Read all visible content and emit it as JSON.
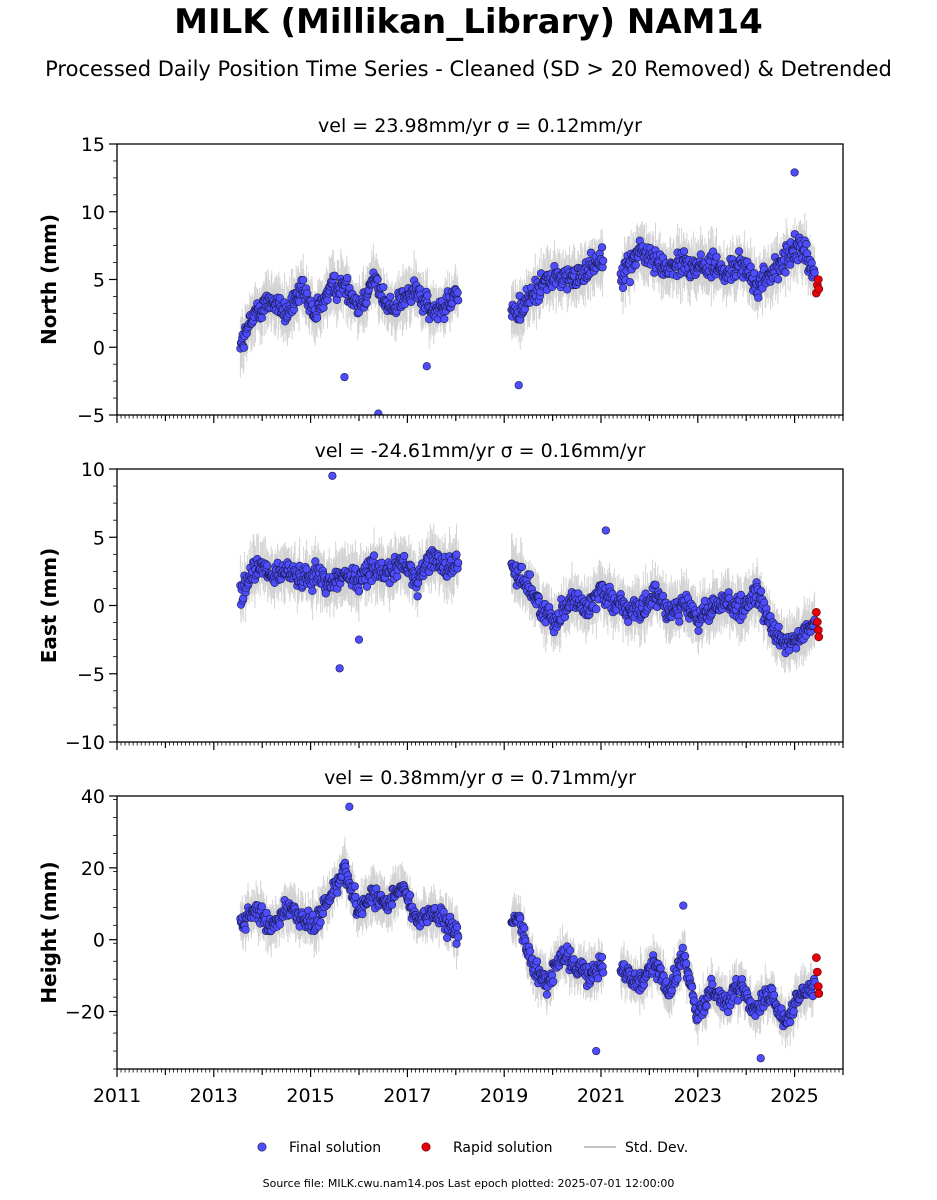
{
  "title": "MILK (Millikan_Library) NAM14",
  "subtitle": "Processed Daily Position Time Series - Cleaned (SD > 20 Removed) & Detrended",
  "footer": "Source file: MILK.cwu.nam14.pos  Last epoch plotted: 2025-07-01 12:00:00",
  "colors": {
    "final": "#4d4dff",
    "rapid": "#e8000b",
    "stddev": "#b0b0b0"
  },
  "legend": [
    {
      "key": "final",
      "label": "Final solution"
    },
    {
      "key": "rapid",
      "label": "Rapid solution"
    },
    {
      "key": "stddev",
      "label": "Std. Dev."
    }
  ],
  "chart_data": [
    {
      "type": "scatter",
      "title": "vel = 23.98mm/yr   σ = 0.12mm/yr",
      "ylabel": "North (mm)",
      "xlim": [
        2011,
        2026
      ],
      "ylim": [
        -5,
        15
      ],
      "yticks": [
        -5,
        0,
        5,
        10,
        15
      ],
      "ytick_labels": [
        "−5",
        "0",
        "5",
        "10",
        "15"
      ],
      "xticks": [
        2011,
        2013,
        2015,
        2017,
        2019,
        2021,
        2023,
        2025
      ],
      "xtick_labels": [],
      "series": [
        {
          "name": "Final solution",
          "x": [
            2013.6,
            2013.9,
            2014.2,
            2014.5,
            2014.8,
            2015.1,
            2015.4,
            2015.7,
            2016.0,
            2016.3,
            2016.6,
            2016.9,
            2017.2,
            2017.5,
            2017.8,
            2018.0,
            2019.2,
            2019.5,
            2019.8,
            2020.1,
            2020.4,
            2020.7,
            2021.0,
            2021.5,
            2021.8,
            2022.1,
            2022.4,
            2022.7,
            2023.0,
            2023.3,
            2023.6,
            2023.9,
            2024.2,
            2024.5,
            2024.8,
            2025.1,
            2025.4
          ],
          "y": [
            0.5,
            2.8,
            3.5,
            2.5,
            4.2,
            2.3,
            4.4,
            4.6,
            3.0,
            5.2,
            2.8,
            3.6,
            4.1,
            2.5,
            3.2,
            4.0,
            2.2,
            3.5,
            4.8,
            5.2,
            4.9,
            5.8,
            6.5,
            5.6,
            7.2,
            6.4,
            5.8,
            6.4,
            5.9,
            6.2,
            5.3,
            6.2,
            4.5,
            5.4,
            6.3,
            7.7,
            5.6
          ]
        },
        {
          "name": "Rapid solution",
          "x": [
            2025.45,
            2025.47,
            2025.49,
            2025.5
          ],
          "y": [
            4.0,
            4.6,
            5.0,
            4.3
          ]
        }
      ],
      "outliers": {
        "x": [
          2015.7,
          2016.4,
          2017.4,
          2019.3,
          2025.0
        ],
        "y": [
          -2.2,
          -4.9,
          -1.4,
          -2.8,
          12.9
        ]
      }
    },
    {
      "type": "scatter",
      "title": "vel = -24.61mm/yr   σ = 0.16mm/yr",
      "ylabel": "East (mm)",
      "xlim": [
        2011,
        2026
      ],
      "ylim": [
        -10,
        10
      ],
      "yticks": [
        -10,
        -5,
        0,
        5,
        10
      ],
      "ytick_labels": [
        "−10",
        "−5",
        "0",
        "5",
        "10"
      ],
      "xticks": [
        2011,
        2013,
        2015,
        2017,
        2019,
        2021,
        2023,
        2025
      ],
      "xtick_labels": [],
      "series": [
        {
          "name": "Final solution",
          "x": [
            2013.6,
            2013.9,
            2014.2,
            2014.5,
            2014.8,
            2015.1,
            2015.4,
            2015.7,
            2016.0,
            2016.3,
            2016.6,
            2016.9,
            2017.2,
            2017.5,
            2017.8,
            2018.0,
            2019.2,
            2019.5,
            2019.8,
            2020.1,
            2020.4,
            2020.7,
            2021.0,
            2021.5,
            2021.8,
            2022.1,
            2022.4,
            2022.7,
            2023.0,
            2023.3,
            2023.6,
            2023.9,
            2024.2,
            2024.5,
            2024.8,
            2025.1,
            2025.4
          ],
          "y": [
            1.0,
            3.0,
            2.0,
            2.6,
            1.9,
            2.4,
            1.6,
            2.3,
            1.8,
            3.0,
            2.2,
            3.2,
            1.8,
            3.6,
            2.8,
            3.0,
            2.6,
            1.5,
            -0.5,
            -1.0,
            0.6,
            -0.4,
            1.2,
            -0.2,
            -0.6,
            0.8,
            -0.4,
            0.2,
            -1.0,
            -0.3,
            0.5,
            -0.5,
            0.9,
            -1.5,
            -2.7,
            -2.3,
            -1.6
          ]
        },
        {
          "name": "Rapid solution",
          "x": [
            2025.45,
            2025.47,
            2025.49,
            2025.5
          ],
          "y": [
            -0.5,
            -1.2,
            -1.8,
            -2.3
          ]
        }
      ],
      "outliers": {
        "x": [
          2015.45,
          2015.6,
          2016.0,
          2021.1
        ],
        "y": [
          9.5,
          -4.6,
          -2.5,
          5.5
        ]
      }
    },
    {
      "type": "scatter",
      "title": "vel = 0.38mm/yr   σ = 0.71mm/yr",
      "ylabel": "Height (mm)",
      "xlim": [
        2011,
        2026
      ],
      "ylim": [
        -36,
        40
      ],
      "yticks": [
        -20,
        0,
        20,
        40
      ],
      "ytick_labels": [
        "−20",
        "0",
        "20",
        "40"
      ],
      "xticks": [
        2011,
        2013,
        2015,
        2017,
        2019,
        2021,
        2023,
        2025
      ],
      "xtick_labels": [
        "2011",
        "2013",
        "2015",
        "2017",
        "2019",
        "2021",
        "2023",
        "2025"
      ],
      "series": [
        {
          "name": "Final solution",
          "x": [
            2013.6,
            2013.9,
            2014.2,
            2014.5,
            2014.8,
            2015.1,
            2015.4,
            2015.7,
            2016.0,
            2016.3,
            2016.6,
            2016.9,
            2017.2,
            2017.5,
            2017.8,
            2018.0,
            2019.3,
            2019.6,
            2019.9,
            2020.2,
            2020.5,
            2020.8,
            2021.0,
            2021.5,
            2021.8,
            2022.1,
            2022.4,
            2022.7,
            2023.0,
            2023.3,
            2023.6,
            2023.9,
            2024.2,
            2024.5,
            2024.8,
            2025.1,
            2025.4
          ],
          "y": [
            5,
            8,
            3,
            10,
            6,
            4,
            12,
            20,
            8,
            13,
            9,
            15,
            5,
            8,
            4,
            2,
            6,
            -8,
            -12,
            -4,
            -8,
            -10,
            -6,
            -9,
            -12,
            -6,
            -15,
            -4,
            -22,
            -13,
            -18,
            -12,
            -20,
            -14,
            -23,
            -16,
            -12
          ]
        },
        {
          "name": "Rapid solution",
          "x": [
            2025.45,
            2025.47,
            2025.49,
            2025.5
          ],
          "y": [
            -5,
            -9,
            -13,
            -15
          ]
        }
      ],
      "outliers": {
        "x": [
          2015.8,
          2020.9,
          2022.7,
          2024.3
        ],
        "y": [
          37,
          -31,
          9.5,
          -33
        ]
      }
    }
  ]
}
